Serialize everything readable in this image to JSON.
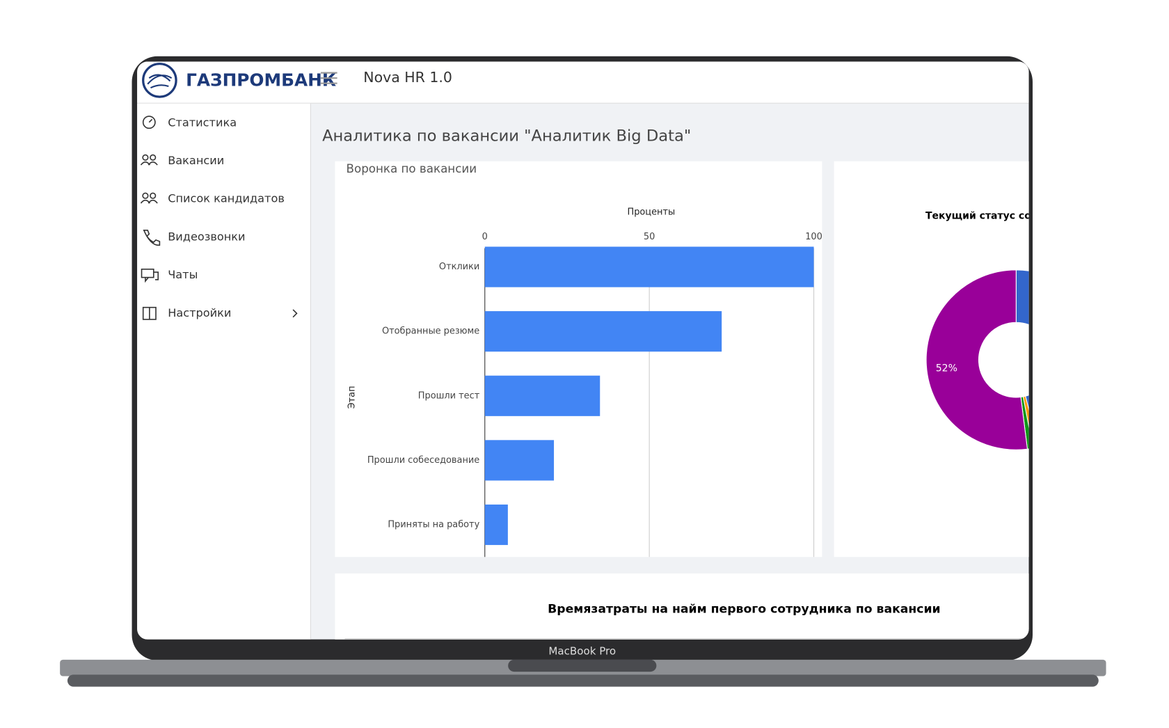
{
  "header": {
    "bank": "ГАЗПРОМБАНК",
    "app": "Nova HR 1.0"
  },
  "sidebar": {
    "items": [
      {
        "label": "Статистика"
      },
      {
        "label": "Вакансии"
      },
      {
        "label": "Список кандидатов"
      },
      {
        "label": "Видеозвонки"
      },
      {
        "label": "Чаты"
      },
      {
        "label": "Настройки"
      }
    ]
  },
  "page_title": "Аналитика по вакансии \"Аналитик Big Data\"",
  "device_label": "MacBook Pro",
  "chart_data": [
    {
      "type": "hbar",
      "card_title": "Воронка по вакансии",
      "x_label": "Проценты",
      "y_label": "Этап",
      "categories": [
        "Отклики",
        "Отобранные резюме",
        "Прошли тест",
        "Прошли собеседование",
        "Приняты на работу"
      ],
      "values": [
        100,
        72,
        35,
        21,
        7
      ],
      "color": "#4285f4",
      "xlim": [
        0,
        100
      ],
      "xticks": [
        0,
        50,
        100
      ],
      "grid": true
    },
    {
      "type": "donut",
      "title": "Текущий статус соис",
      "values": [
        46,
        1,
        1,
        52
      ],
      "colors": [
        "#3366cc",
        "#ff9900",
        "#109618",
        "#990099"
      ],
      "value_labels": [
        null,
        null,
        null,
        "52%"
      ]
    },
    {
      "type": "bar",
      "title": "Времязатраты на найм первого сотрудника по вакансии"
    }
  ]
}
